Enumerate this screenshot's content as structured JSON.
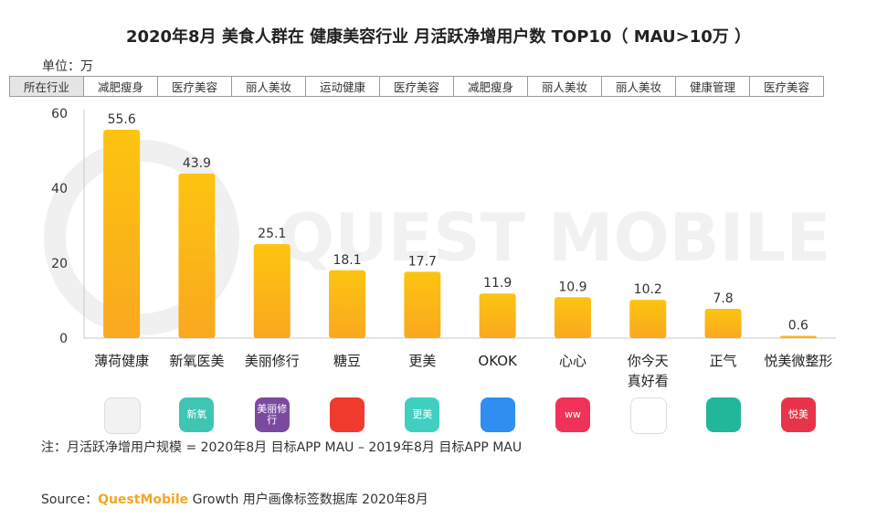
{
  "title": "2020年8月 美食人群在 健康美容行业 月活跃净增用户数 TOP10（ MAU>10万 ）",
  "unit": "单位：万",
  "table": {
    "header": "所在行业",
    "industries": [
      "减肥瘦身",
      "医疗美容",
      "丽人美妆",
      "运动健康",
      "医疗美容",
      "减肥瘦身",
      "丽人美妆",
      "丽人美妆",
      "健康管理",
      "医疗美容"
    ]
  },
  "chart_data": {
    "type": "bar",
    "title": "2020年8月 美食人群在 健康美容行业 月活跃净增用户数 TOP10（ MAU>10万 ）",
    "ylabel": "单位：万",
    "xlabel": "",
    "categories": [
      "薄荷健康",
      "新氧医美",
      "美丽修行",
      "糖豆",
      "更美",
      "OKOK",
      "心心",
      "你今天\n真好看",
      "正气",
      "悦美微整形"
    ],
    "values": [
      55.6,
      43.9,
      25.1,
      18.1,
      17.7,
      11.9,
      10.9,
      10.2,
      7.8,
      0.6
    ],
    "value_labels": [
      "55.6",
      "43.9",
      "25.1",
      "18.1",
      "17.7",
      "11.9",
      "10.9",
      "10.2",
      "7.8",
      "0.6"
    ],
    "yticks": [
      "0",
      "20",
      "40",
      "60"
    ],
    "ylim": [
      0,
      60
    ],
    "grid": false,
    "bar_color": "#fbbf0c"
  },
  "icons": [
    {
      "name": "bohe-app-icon",
      "bg": "#f2f2f2",
      "text": ""
    },
    {
      "name": "xinyang-app-icon",
      "bg": "#3ec6b3",
      "text": "新氧"
    },
    {
      "name": "meilixiuxing-app-icon",
      "bg": "#7b4aa0",
      "text": "美丽修行"
    },
    {
      "name": "tangdou-app-icon",
      "bg": "#f03a2e",
      "text": ""
    },
    {
      "name": "gengmei-app-icon",
      "bg": "#3fd0c2",
      "text": "更美"
    },
    {
      "name": "okok-app-icon",
      "bg": "#2f8ef0",
      "text": ""
    },
    {
      "name": "xinxin-app-icon",
      "bg": "#f0325a",
      "text": "ww"
    },
    {
      "name": "nijintian-app-icon",
      "bg": "#ffffff",
      "text": ""
    },
    {
      "name": "zhengqi-app-icon",
      "bg": "#22b79a",
      "text": ""
    },
    {
      "name": "yuemei-app-icon",
      "bg": "#e8344a",
      "text": "悦美"
    }
  ],
  "note": "注：月活跃净增用户规模 = 2020年8月 目标APP MAU – 2019年8月 目标APP MAU",
  "source": {
    "prefix": "Source：",
    "brand": "QuestMobile",
    "suffix": " Growth 用户画像标签数据库 2020年8月"
  },
  "watermark": "QUEST MOBILE"
}
